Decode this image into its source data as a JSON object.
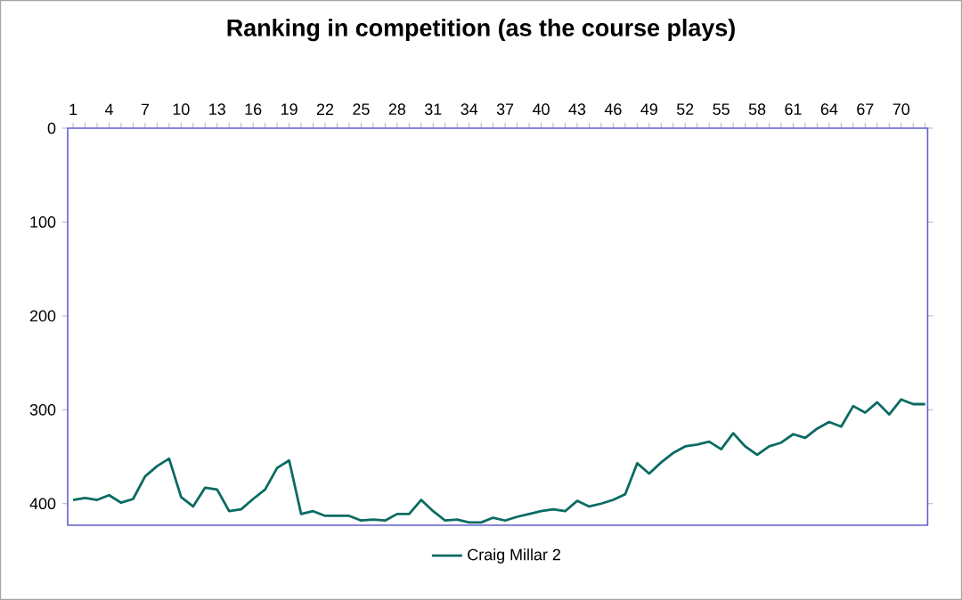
{
  "chart_data": {
    "type": "line",
    "title": "Ranking in competition (as the course plays)",
    "categories": [
      "1",
      null,
      null,
      "4",
      null,
      null,
      "7",
      null,
      null,
      "10",
      null,
      null,
      "13",
      null,
      null,
      "16",
      null,
      null,
      "19",
      null,
      null,
      "22",
      null,
      null,
      "25",
      null,
      null,
      "28",
      null,
      null,
      "31",
      null,
      null,
      "34",
      null,
      null,
      "37",
      null,
      null,
      "40",
      null,
      null,
      "43",
      null,
      null,
      "46",
      null,
      null,
      "49",
      null,
      null,
      "52",
      null,
      null,
      "55",
      null,
      null,
      "58",
      null,
      null,
      "61",
      null,
      null,
      "64",
      null,
      null,
      "67",
      null,
      null,
      "70",
      null,
      null
    ],
    "series": [
      {
        "name": "Craig Millar 2",
        "color": "#0b6b63",
        "values": [
          396,
          394,
          396,
          391,
          399,
          395,
          371,
          360,
          352,
          393,
          403,
          383,
          385,
          408,
          406,
          395,
          385,
          362,
          354,
          411,
          408,
          413,
          413,
          413,
          418,
          417,
          418,
          411,
          411,
          396,
          408,
          418,
          417,
          420,
          420,
          415,
          418,
          414,
          411,
          408,
          406,
          408,
          397,
          403,
          400,
          396,
          390,
          357,
          368,
          356,
          346,
          339,
          337,
          334,
          342,
          325,
          339,
          348,
          339,
          335,
          326,
          330,
          320,
          313,
          318,
          296,
          303,
          292,
          305,
          289,
          294,
          294
        ]
      }
    ],
    "ylim": [
      423,
      0
    ],
    "yticks": [
      0,
      100,
      200,
      300,
      400
    ],
    "grid": false,
    "legend": "bottom",
    "marker": "none",
    "line_style": "solid"
  }
}
